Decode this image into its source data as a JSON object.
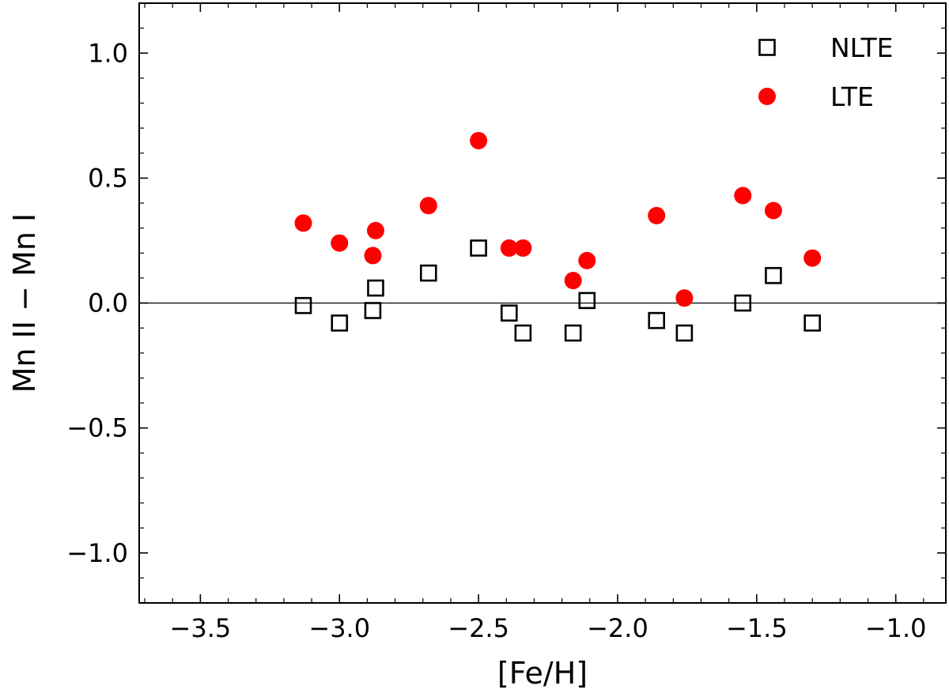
{
  "chart_data": {
    "type": "scatter",
    "title": "",
    "xlabel": "[Fe/H]",
    "ylabel": "Mn II − Mn I",
    "xlim": [
      -3.72,
      -0.82
    ],
    "ylim": [
      -1.2,
      1.2
    ],
    "xticks": [
      -3.5,
      -3.0,
      -2.5,
      -2.0,
      -1.5,
      -1.0
    ],
    "xtick_labels": [
      "−3.5",
      "−3.0",
      "−2.5",
      "−2.0",
      "−1.5",
      "−1.0"
    ],
    "yticks": [
      1.0,
      0.5,
      0.0,
      -0.5,
      -1.0
    ],
    "ytick_labels": [
      "1.0",
      "0.5",
      "0.0",
      "−0.5",
      "−1.0"
    ],
    "x_minor_step": 0.1,
    "y_minor_step": 0.1,
    "reference_line_y": 0.0,
    "grid": false,
    "legend_position": "top-right",
    "series": [
      {
        "name": "NLTE",
        "marker": "open-square",
        "color": "#000000",
        "points": [
          {
            "x": -3.13,
            "y": -0.01
          },
          {
            "x": -3.0,
            "y": -0.08
          },
          {
            "x": -2.88,
            "y": -0.03
          },
          {
            "x": -2.87,
            "y": 0.06
          },
          {
            "x": -2.68,
            "y": 0.12
          },
          {
            "x": -2.5,
            "y": 0.22
          },
          {
            "x": -2.39,
            "y": -0.04
          },
          {
            "x": -2.34,
            "y": -0.12
          },
          {
            "x": -2.16,
            "y": -0.12
          },
          {
            "x": -2.11,
            "y": 0.01
          },
          {
            "x": -1.86,
            "y": -0.07
          },
          {
            "x": -1.76,
            "y": -0.12
          },
          {
            "x": -1.55,
            "y": 0.0
          },
          {
            "x": -1.44,
            "y": 0.11
          },
          {
            "x": -1.3,
            "y": -0.08
          }
        ]
      },
      {
        "name": "LTE",
        "marker": "filled-circle",
        "color": "#ff0000",
        "points": [
          {
            "x": -3.13,
            "y": 0.32
          },
          {
            "x": -3.0,
            "y": 0.24
          },
          {
            "x": -2.88,
            "y": 0.19
          },
          {
            "x": -2.87,
            "y": 0.29
          },
          {
            "x": -2.68,
            "y": 0.39
          },
          {
            "x": -2.5,
            "y": 0.65
          },
          {
            "x": -2.39,
            "y": 0.22
          },
          {
            "x": -2.34,
            "y": 0.22
          },
          {
            "x": -2.16,
            "y": 0.09
          },
          {
            "x": -2.11,
            "y": 0.17
          },
          {
            "x": -1.86,
            "y": 0.35
          },
          {
            "x": -1.76,
            "y": 0.02
          },
          {
            "x": -1.55,
            "y": 0.43
          },
          {
            "x": -1.44,
            "y": 0.37
          },
          {
            "x": -1.3,
            "y": 0.18
          }
        ]
      }
    ]
  }
}
